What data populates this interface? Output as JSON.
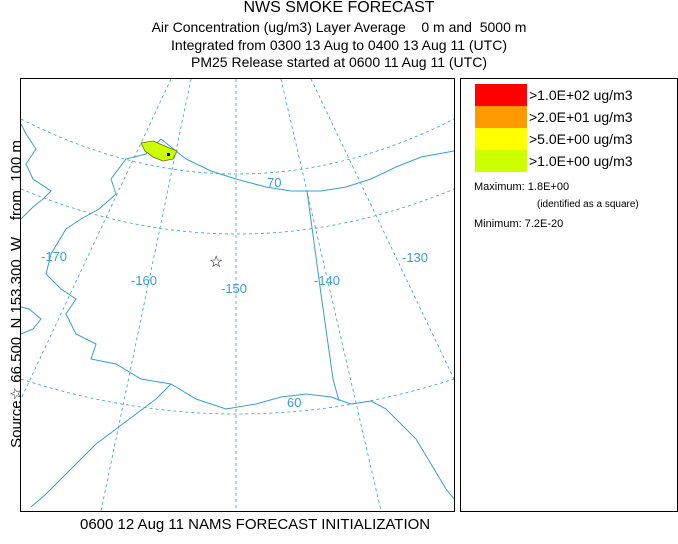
{
  "header": {
    "title": "NWS SMOKE FORECAST",
    "line1": "Air Concentration (ug/m3) Layer Average    0 m and  5000 m",
    "line2": "Integrated from 0300 13 Aug to 0400 13 Aug 11 (UTC)",
    "line3": "PM25 Release started at 0600 11 Aug 11 (UTC)"
  },
  "side_label": "Source☆ 66.500  N 153.300  W    from  100 m",
  "map": {
    "longitude_labels": [
      "-170",
      "-160",
      "-150",
      "-140",
      "-130"
    ],
    "latitude_labels": [
      "70",
      "60"
    ],
    "source_marker": "☆",
    "colors": {
      "land": "#3aa0cc",
      "grid": "#3aa0cc",
      "plume": "#ccff00"
    }
  },
  "legend": {
    "items": [
      {
        "label": ">1.0E+02 ug/m3",
        "color": "#ff0000"
      },
      {
        "label": ">2.0E+01 ug/m3",
        "color": "#ff9900"
      },
      {
        "label": ">5.0E+00 ug/m3",
        "color": "#ffff00"
      },
      {
        "label": ">1.0E+00 ug/m3",
        "color": "#ccff00"
      }
    ],
    "maximum": "Maximum: 1.8E+00",
    "maximum_note": "(identified as a square)",
    "minimum": "Minimum: 7.2E-20"
  },
  "footer": "0600 12 Aug 11 NAMS FORECAST INITIALIZATION"
}
